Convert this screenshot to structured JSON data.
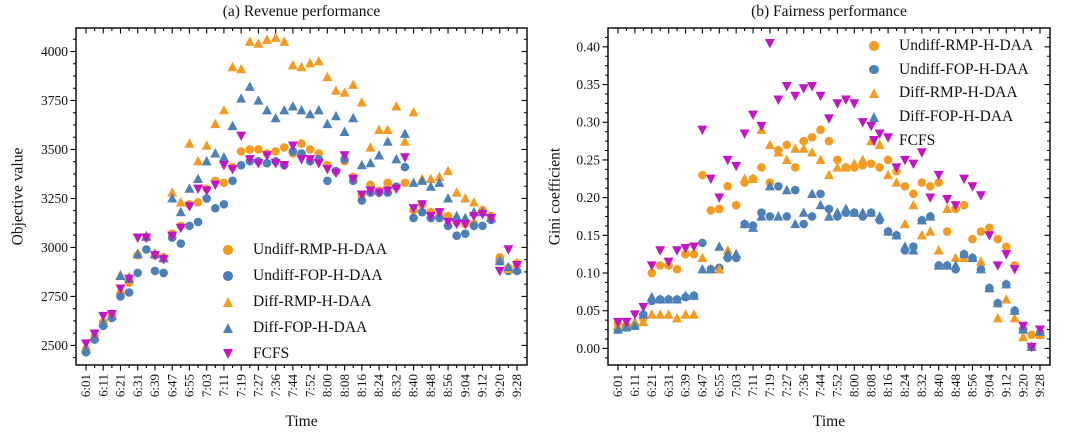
{
  "colors": {
    "orange": "#F59B21",
    "blue": "#4E80B8",
    "magenta": "#C315C3",
    "axis": "#000000"
  },
  "legend": [
    {
      "label": "Undiff-RMP-H-DAA",
      "marker": "circle",
      "color": "#F59B21"
    },
    {
      "label": "Undiff-FOP-H-DAA",
      "marker": "circle",
      "color": "#4E80B8"
    },
    {
      "label": "Diff-RMP-H-DAA",
      "marker": "triangle-up",
      "color": "#F59B21"
    },
    {
      "label": "Diff-FOP-H-DAA",
      "marker": "triangle-up",
      "color": "#4E80B8"
    },
    {
      "label": "FCFS",
      "marker": "triangle-down",
      "color": "#C315C3"
    }
  ],
  "chart_data": [
    {
      "id": "revenue",
      "type": "scatter",
      "title": "(a) Revenue performance",
      "xlabel": "Time",
      "ylabel": "Objective value",
      "x_tick_labels": [
        "6:01",
        "6:11",
        "6:21",
        "6:31",
        "6:39",
        "6:47",
        "6:55",
        "7:03",
        "7:11",
        "7:19",
        "7:27",
        "7:36",
        "7:44",
        "7:52",
        "8:00",
        "8:08",
        "8:16",
        "8:24",
        "8:32",
        "8:40",
        "8:48",
        "8:56",
        "9:04",
        "9:12",
        "9:20",
        "9:28"
      ],
      "x_minor_ticks_between_labels": 1,
      "ylim": [
        2400,
        4120
      ],
      "y_tick_values": [
        2500,
        2750,
        3000,
        3250,
        3500,
        3750,
        4000
      ],
      "y_tick_labels": [
        "2500",
        "2750",
        "3000",
        "3250",
        "3500",
        "3750",
        "4000"
      ],
      "grid": false,
      "legend_position": "inside-bottom-center",
      "series": [
        {
          "name": "Undiff-RMP-H-DAA",
          "marker": "circle",
          "color": "#F59B21",
          "values": [
            2480,
            2545,
            2620,
            2655,
            2765,
            2820,
            2960,
            3050,
            2960,
            2950,
            3070,
            3110,
            3220,
            3230,
            3300,
            3340,
            3330,
            3410,
            3490,
            3500,
            3500,
            3480,
            3490,
            3510,
            3480,
            3530,
            3500,
            3480,
            3420,
            3390,
            3440,
            3360,
            3270,
            3320,
            3290,
            3330,
            3310,
            3330,
            3190,
            3220,
            3180,
            3160,
            3160,
            3130,
            3120,
            3120,
            3190,
            3160,
            2950,
            2895,
            2920
          ]
        },
        {
          "name": "Undiff-FOP-H-DAA",
          "marker": "circle",
          "color": "#4E80B8",
          "values": [
            2465,
            2530,
            2600,
            2640,
            2750,
            2770,
            2870,
            2990,
            2880,
            2870,
            3050,
            3020,
            3110,
            3130,
            3250,
            3200,
            3220,
            3340,
            3420,
            3440,
            3440,
            3430,
            3440,
            3420,
            3490,
            3480,
            3440,
            3450,
            3340,
            3390,
            3450,
            3340,
            3240,
            3280,
            3280,
            3280,
            3310,
            3410,
            3150,
            3180,
            3150,
            3150,
            3110,
            3060,
            3070,
            3110,
            3110,
            3140,
            2930,
            2880,
            2880
          ]
        },
        {
          "name": "Diff-RMP-H-DAA",
          "marker": "triangle-up",
          "color": "#F59B21",
          "values": [
            2490,
            2550,
            2625,
            2660,
            2860,
            2850,
            2970,
            3060,
            2970,
            2950,
            3280,
            3230,
            3530,
            3440,
            3520,
            3630,
            3700,
            3920,
            3910,
            4050,
            4040,
            4060,
            4070,
            4050,
            3930,
            3920,
            3940,
            3950,
            3870,
            3800,
            3790,
            3830,
            3740,
            3510,
            3600,
            3600,
            3720,
            3540,
            3690,
            3350,
            3350,
            3360,
            3390,
            3280,
            3250,
            3230,
            3190,
            3160,
            2940,
            2890,
            2920
          ]
        },
        {
          "name": "Diff-FOP-H-DAA",
          "marker": "triangle-up",
          "color": "#4E80B8",
          "values": [
            2480,
            2545,
            2615,
            2650,
            2855,
            2840,
            2965,
            3055,
            2965,
            2945,
            3250,
            3180,
            3300,
            3350,
            3440,
            3480,
            3460,
            3620,
            3760,
            3820,
            3750,
            3700,
            3660,
            3700,
            3720,
            3700,
            3680,
            3700,
            3630,
            3670,
            3590,
            3660,
            3420,
            3430,
            3470,
            3540,
            3450,
            3580,
            3330,
            3340,
            3310,
            3330,
            3250,
            3160,
            3150,
            3180,
            3180,
            3150,
            2930,
            2900,
            2890
          ]
        },
        {
          "name": "FCFS",
          "marker": "triangle-down",
          "color": "#C315C3",
          "values": [
            2510,
            2560,
            2650,
            2660,
            2790,
            2840,
            3050,
            3050,
            2960,
            2940,
            3060,
            3100,
            3210,
            3300,
            3290,
            3320,
            3420,
            3400,
            3570,
            3450,
            3430,
            3470,
            3430,
            3420,
            3520,
            3450,
            3450,
            3430,
            3400,
            3380,
            3470,
            3350,
            3270,
            3290,
            3280,
            3290,
            3300,
            3460,
            3200,
            3220,
            3160,
            3180,
            3130,
            3120,
            3120,
            3160,
            3170,
            3150,
            2880,
            2990,
            2910
          ]
        }
      ]
    },
    {
      "id": "fairness",
      "type": "scatter",
      "title": "(b) Fairness performance",
      "xlabel": "Time",
      "ylabel": "Gini coefficient",
      "x_tick_labels": [
        "6:01",
        "6:11",
        "6:21",
        "6:31",
        "6:39",
        "6:47",
        "6:55",
        "7:03",
        "7:11",
        "7:19",
        "7:27",
        "7:36",
        "7:44",
        "7:52",
        "8:00",
        "8:08",
        "8:16",
        "8:24",
        "8:32",
        "8:40",
        "8:48",
        "8:56",
        "9:04",
        "9:12",
        "9:20",
        "9:28"
      ],
      "x_minor_ticks_between_labels": 1,
      "ylim": [
        -0.022,
        0.425
      ],
      "y_tick_values": [
        0.0,
        0.05,
        0.1,
        0.15,
        0.2,
        0.25,
        0.3,
        0.35,
        0.4
      ],
      "y_tick_labels": [
        "0.00",
        "0.05",
        "0.10",
        "0.15",
        "0.20",
        "0.25",
        "0.30",
        "0.35",
        "0.40"
      ],
      "grid": false,
      "legend_position": "inside-top-right",
      "series": [
        {
          "name": "Undiff-RMP-H-DAA",
          "marker": "circle",
          "color": "#F59B21",
          "values": [
            0.033,
            0.03,
            0.03,
            0.04,
            0.1,
            0.11,
            0.11,
            0.105,
            0.125,
            0.125,
            0.23,
            0.183,
            0.185,
            0.215,
            0.19,
            0.22,
            0.225,
            0.24,
            0.22,
            0.263,
            0.27,
            0.24,
            0.275,
            0.28,
            0.29,
            0.275,
            0.25,
            0.24,
            0.24,
            0.243,
            0.245,
            0.24,
            0.25,
            0.235,
            0.215,
            0.205,
            0.22,
            0.215,
            0.22,
            0.155,
            0.185,
            0.19,
            0.145,
            0.155,
            0.16,
            0.145,
            0.135,
            0.11,
            0.025,
            0.018,
            0.02
          ]
        },
        {
          "name": "Undiff-FOP-H-DAA",
          "marker": "circle",
          "color": "#4E80B8",
          "values": [
            0.025,
            0.028,
            0.03,
            0.045,
            0.063,
            0.065,
            0.065,
            0.065,
            0.068,
            0.07,
            0.14,
            0.105,
            0.107,
            0.12,
            0.12,
            0.165,
            0.163,
            0.18,
            0.175,
            0.215,
            0.175,
            0.21,
            0.165,
            0.175,
            0.205,
            0.185,
            0.175,
            0.18,
            0.18,
            0.175,
            0.18,
            0.17,
            0.155,
            0.15,
            0.13,
            0.135,
            0.17,
            0.175,
            0.11,
            0.11,
            0.105,
            0.125,
            0.12,
            0.105,
            0.08,
            0.06,
            0.085,
            0.05,
            0.025,
            0.002,
            0.02
          ]
        },
        {
          "name": "Diff-RMP-H-DAA",
          "marker": "triangle-up",
          "color": "#F59B21",
          "values": [
            0.03,
            0.03,
            0.035,
            0.035,
            0.045,
            0.045,
            0.045,
            0.04,
            0.045,
            0.045,
            0.12,
            0.105,
            0.105,
            0.13,
            0.125,
            0.225,
            0.225,
            0.29,
            0.27,
            0.26,
            0.25,
            0.265,
            0.265,
            0.26,
            0.25,
            0.23,
            0.24,
            0.24,
            0.245,
            0.25,
            0.275,
            0.27,
            0.23,
            0.22,
            0.165,
            0.19,
            0.15,
            0.155,
            0.13,
            0.185,
            0.12,
            0.12,
            0.12,
            0.115,
            0.08,
            0.04,
            0.065,
            0.04,
            0.015,
            0.002,
            0.018
          ]
        },
        {
          "name": "Diff-FOP-H-DAA",
          "marker": "triangle-up",
          "color": "#4E80B8",
          "values": [
            0.025,
            0.028,
            0.03,
            0.045,
            0.068,
            0.065,
            0.065,
            0.065,
            0.07,
            0.07,
            0.105,
            0.105,
            0.135,
            0.125,
            0.125,
            0.165,
            0.16,
            0.175,
            0.215,
            0.175,
            0.21,
            0.165,
            0.18,
            0.205,
            0.19,
            0.175,
            0.18,
            0.185,
            0.18,
            0.18,
            0.18,
            0.175,
            0.155,
            0.15,
            0.135,
            0.13,
            0.17,
            0.175,
            0.11,
            0.11,
            0.11,
            0.125,
            0.12,
            0.105,
            0.08,
            0.06,
            0.085,
            0.05,
            0.025,
            0.002,
            0.022
          ]
        },
        {
          "name": "FCFS",
          "marker": "triangle-down",
          "color": "#C315C3",
          "values": [
            0.035,
            0.035,
            0.045,
            0.055,
            0.11,
            0.13,
            0.115,
            0.13,
            0.133,
            0.135,
            0.29,
            0.225,
            0.2,
            0.25,
            0.242,
            0.285,
            0.31,
            0.295,
            0.405,
            0.33,
            0.348,
            0.335,
            0.345,
            0.348,
            0.335,
            0.305,
            0.325,
            0.33,
            0.325,
            0.3,
            0.295,
            0.285,
            0.28,
            0.24,
            0.25,
            0.245,
            0.26,
            0.2,
            0.23,
            0.198,
            0.19,
            0.225,
            0.215,
            0.203,
            0.15,
            0.11,
            0.125,
            0.105,
            0.03,
            0.002,
            0.025
          ]
        }
      ]
    }
  ]
}
